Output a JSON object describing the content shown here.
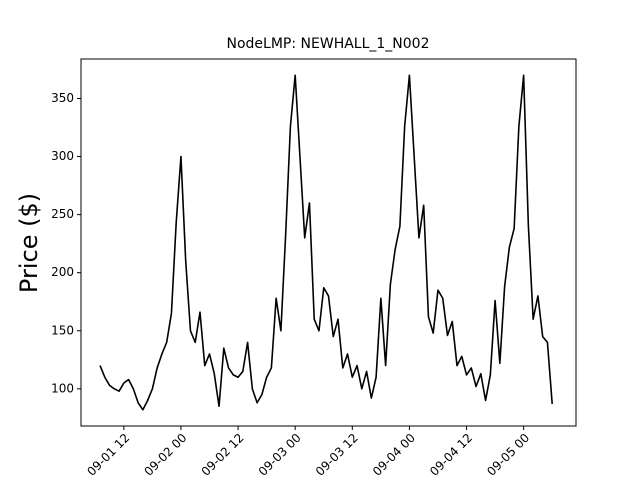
{
  "chart_data": {
    "type": "line",
    "title": "NodeLMP: NEWHALL_1_N002",
    "y_label": "Price ($)",
    "x": [
      "09-01 07",
      "09-01 08",
      "09-01 09",
      "09-01 10",
      "09-01 11",
      "09-01 12",
      "09-01 13",
      "09-01 14",
      "09-01 15",
      "09-01 16",
      "09-01 17",
      "09-01 18",
      "09-01 19",
      "09-01 20",
      "09-01 21",
      "09-01 22",
      "09-01 23",
      "09-02 00",
      "09-02 01",
      "09-02 02",
      "09-02 03",
      "09-02 04",
      "09-02 05",
      "09-02 06",
      "09-02 07",
      "09-02 08",
      "09-02 09",
      "09-02 10",
      "09-02 11",
      "09-02 12",
      "09-02 13",
      "09-02 14",
      "09-02 15",
      "09-02 16",
      "09-02 17",
      "09-02 18",
      "09-02 19",
      "09-02 20",
      "09-02 21",
      "09-02 22",
      "09-02 23",
      "09-03 00",
      "09-03 01",
      "09-03 02",
      "09-03 03",
      "09-03 04",
      "09-03 05",
      "09-03 06",
      "09-03 07",
      "09-03 08",
      "09-03 09",
      "09-03 10",
      "09-03 11",
      "09-03 12",
      "09-03 13",
      "09-03 14",
      "09-03 15",
      "09-03 16",
      "09-03 17",
      "09-03 18",
      "09-03 19",
      "09-03 20",
      "09-03 21",
      "09-03 22",
      "09-03 23",
      "09-04 00",
      "09-04 01",
      "09-04 02",
      "09-04 03",
      "09-04 04",
      "09-04 05",
      "09-04 06",
      "09-04 07",
      "09-04 08",
      "09-04 09",
      "09-04 10",
      "09-04 11",
      "09-04 12",
      "09-04 13",
      "09-04 14",
      "09-04 15",
      "09-04 16",
      "09-04 17",
      "09-04 18",
      "09-04 19",
      "09-04 20",
      "09-04 21",
      "09-04 22",
      "09-04 23",
      "09-05 00",
      "09-05 01",
      "09-05 02",
      "09-05 03",
      "09-05 04",
      "09-05 05",
      "09-05 06"
    ],
    "series": [
      {
        "name": "NEWHALL_1_N002",
        "color": "#000000",
        "values": [
          120,
          110,
          103,
          100,
          98,
          105,
          108,
          100,
          88,
          82,
          90,
          100,
          118,
          130,
          140,
          165,
          243,
          300,
          210,
          150,
          140,
          166,
          120,
          130,
          113,
          85,
          135,
          118,
          112,
          110,
          115,
          140,
          100,
          88,
          95,
          110,
          118,
          178,
          150,
          233,
          326,
          370,
          300,
          230,
          260,
          160,
          150,
          187,
          180,
          145,
          160,
          118,
          130,
          110,
          120,
          100,
          115,
          92,
          110,
          178,
          120,
          190,
          220,
          240,
          326,
          370,
          300,
          230,
          258,
          162,
          148,
          185,
          178,
          146,
          158,
          120,
          128,
          112,
          118,
          102,
          113,
          90,
          112,
          176,
          122,
          188,
          222,
          238,
          326,
          370,
          240,
          160,
          180,
          145,
          140,
          87
        ]
      }
    ],
    "xlim": [
      "09-01 03",
      "09-05 11"
    ],
    "xticks": [
      "09-01 12",
      "09-02 00",
      "09-02 12",
      "09-03 00",
      "09-03 12",
      "09-04 00",
      "09-04 12",
      "09-05 00"
    ],
    "ylim": [
      68,
      384
    ],
    "yticks": [
      100,
      150,
      200,
      250,
      300,
      350
    ]
  }
}
